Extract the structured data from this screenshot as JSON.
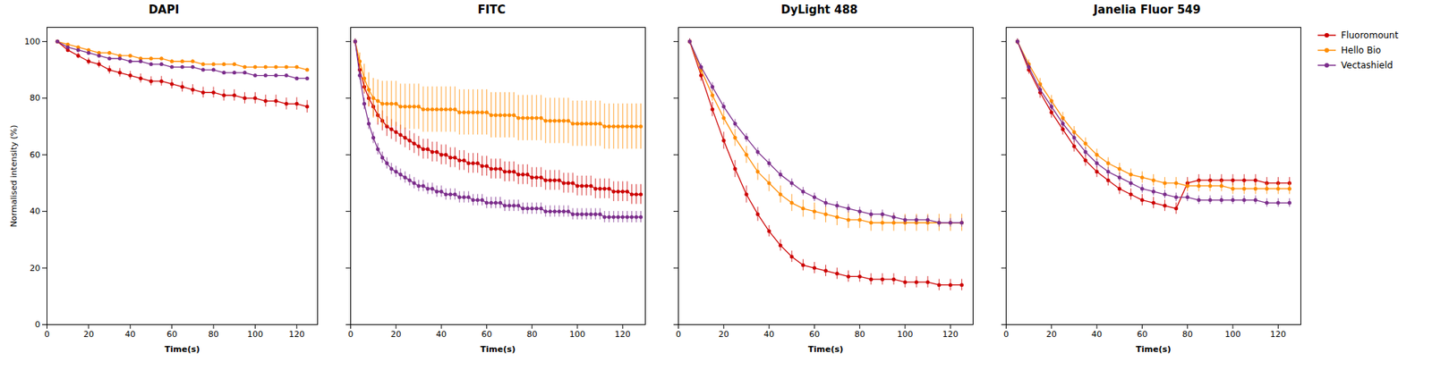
{
  "chart_data": [
    {
      "type": "line",
      "title": "DAPI",
      "xlabel": "Time(s)",
      "ylabel": "Normalised intensity (%)",
      "xlim": [
        0,
        130
      ],
      "ylim": [
        0,
        105
      ],
      "xticks": [
        0,
        20,
        40,
        60,
        80,
        100,
        120
      ],
      "yticks": [
        0,
        20,
        40,
        60,
        80,
        100
      ],
      "grid": false,
      "marker": "circle",
      "line_style": "solid",
      "x": [
        5,
        10,
        15,
        20,
        25,
        30,
        35,
        40,
        45,
        50,
        55,
        60,
        65,
        70,
        75,
        80,
        85,
        90,
        95,
        100,
        105,
        110,
        115,
        120,
        125
      ],
      "series": [
        {
          "name": "Fluoromount",
          "color": "#CC0000",
          "values": [
            100,
            97,
            95,
            93,
            92,
            90,
            89,
            88,
            87,
            86,
            86,
            85,
            84,
            83,
            82,
            82,
            81,
            81,
            80,
            80,
            79,
            79,
            78,
            78,
            77
          ],
          "yerr": [
            0.5,
            0.8,
            1.0,
            1.2,
            1.3,
            1.4,
            1.5,
            1.5,
            1.6,
            1.6,
            1.7,
            1.7,
            1.8,
            1.8,
            1.9,
            1.9,
            2.0,
            2.0,
            2.0,
            2.0,
            2.1,
            2.1,
            2.1,
            2.2,
            2.2
          ]
        },
        {
          "name": "Hello Bio",
          "color": "#FF8C00",
          "values": [
            100,
            99,
            98,
            97,
            96,
            96,
            95,
            95,
            94,
            94,
            94,
            93,
            93,
            93,
            92,
            92,
            92,
            92,
            91,
            91,
            91,
            91,
            91,
            91,
            90
          ],
          "yerr": [
            0.3,
            0.3,
            0.4,
            0.4,
            0.4,
            0.5,
            0.5,
            0.5,
            0.5,
            0.5,
            0.5,
            0.5,
            0.5,
            0.5,
            0.5,
            0.5,
            0.5,
            0.5,
            0.5,
            0.5,
            0.5,
            0.5,
            0.5,
            0.5,
            0.5
          ]
        },
        {
          "name": "Vectashield",
          "color": "#7B2D8B",
          "values": [
            100,
            98,
            97,
            96,
            95,
            94,
            94,
            93,
            93,
            92,
            92,
            91,
            91,
            91,
            90,
            90,
            89,
            89,
            89,
            88,
            88,
            88,
            88,
            87,
            87
          ],
          "yerr": [
            0.3,
            0.4,
            0.4,
            0.5,
            0.5,
            0.5,
            0.5,
            0.5,
            0.5,
            0.5,
            0.5,
            0.5,
            0.5,
            0.5,
            0.5,
            0.5,
            0.5,
            0.5,
            0.5,
            0.5,
            0.5,
            0.5,
            0.5,
            0.5,
            0.5
          ]
        }
      ]
    },
    {
      "type": "line",
      "title": "FITC",
      "xlabel": "Time(s)",
      "tick_labels": "x",
      "xlim": [
        0,
        130
      ],
      "ylim": [
        0,
        105
      ],
      "xticks": [
        0,
        20,
        40,
        60,
        80,
        100,
        120
      ],
      "yticks": [
        0,
        20,
        40,
        60,
        80,
        100
      ],
      "grid": false,
      "marker": "circle",
      "line_style": "solid",
      "x": [
        2,
        4,
        6,
        8,
        10,
        12,
        14,
        16,
        18,
        20,
        22,
        24,
        26,
        28,
        30,
        32,
        34,
        36,
        38,
        40,
        42,
        44,
        46,
        48,
        50,
        52,
        54,
        56,
        58,
        60,
        62,
        64,
        66,
        68,
        70,
        72,
        74,
        76,
        78,
        80,
        82,
        84,
        86,
        88,
        90,
        92,
        94,
        96,
        98,
        100,
        102,
        104,
        106,
        108,
        110,
        112,
        114,
        116,
        118,
        120,
        122,
        124,
        126,
        128
      ],
      "series": [
        {
          "name": "Fluoromount",
          "color": "#CC0000",
          "values": [
            100,
            90,
            84,
            80,
            77,
            74,
            72,
            70,
            69,
            68,
            67,
            66,
            65,
            64,
            63,
            62,
            62,
            61,
            61,
            60,
            60,
            59,
            59,
            58,
            58,
            57,
            57,
            57,
            56,
            56,
            55,
            55,
            55,
            54,
            54,
            54,
            53,
            53,
            53,
            52,
            52,
            52,
            51,
            51,
            51,
            51,
            50,
            50,
            50,
            49,
            49,
            49,
            49,
            48,
            48,
            48,
            48,
            47,
            47,
            47,
            47,
            46,
            46,
            46
          ],
          "yerr": [
            1,
            2,
            2.5,
            3,
            3.5,
            3.5,
            3.5,
            3.5,
            3.5,
            3.5,
            3.5,
            3.5,
            3.5,
            3.5,
            3.5,
            3.5,
            3.5,
            3.5,
            3.5,
            3.5,
            3.5,
            3.5,
            3.5,
            3.5,
            3.5,
            3.5,
            3.5,
            3.5,
            3.5,
            3.5,
            3.5,
            3.5,
            3.5,
            3.5,
            3.5,
            3.5,
            3.5,
            3.5,
            3.5,
            3.5,
            3.5,
            3.5,
            3.5,
            3.5,
            3.5,
            3.5,
            3.5,
            3.5,
            3.5,
            3.5,
            3.5,
            3.5,
            3.5,
            3.5,
            3.5,
            3.5,
            3.5,
            3.5,
            3.5,
            3.5,
            3.5,
            3.5,
            3.5,
            3.5
          ]
        },
        {
          "name": "Hello Bio",
          "color": "#FF8C00",
          "values": [
            100,
            93,
            87,
            83,
            80,
            79,
            78,
            78,
            78,
            78,
            77,
            77,
            77,
            77,
            77,
            76,
            76,
            76,
            76,
            76,
            76,
            76,
            76,
            75,
            75,
            75,
            75,
            75,
            75,
            75,
            74,
            74,
            74,
            74,
            74,
            74,
            73,
            73,
            73,
            73,
            73,
            73,
            72,
            72,
            72,
            72,
            72,
            72,
            71,
            71,
            71,
            71,
            71,
            71,
            71,
            70,
            70,
            70,
            70,
            70,
            70,
            70,
            70,
            70
          ],
          "yerr": [
            1,
            3,
            5,
            6,
            7,
            7.5,
            8,
            8,
            8,
            8,
            8,
            8,
            8,
            8,
            8,
            8,
            8,
            8,
            8,
            8,
            8,
            8,
            8,
            8,
            8,
            8,
            8,
            8,
            8,
            8,
            8,
            8,
            8,
            8,
            8,
            8,
            8,
            8,
            8,
            8,
            8,
            8,
            8,
            8,
            8,
            8,
            8,
            8,
            8,
            8,
            8,
            8,
            8,
            8,
            8,
            8,
            8,
            8,
            8,
            8,
            8,
            8,
            8,
            8
          ]
        },
        {
          "name": "Vectashield",
          "color": "#7B2D8B",
          "values": [
            100,
            88,
            78,
            71,
            66,
            62,
            59,
            57,
            55,
            54,
            53,
            52,
            51,
            50,
            49,
            49,
            48,
            48,
            47,
            47,
            46,
            46,
            46,
            45,
            45,
            45,
            44,
            44,
            44,
            43,
            43,
            43,
            43,
            42,
            42,
            42,
            42,
            41,
            41,
            41,
            41,
            41,
            40,
            40,
            40,
            40,
            40,
            40,
            39,
            39,
            39,
            39,
            39,
            39,
            39,
            38,
            38,
            38,
            38,
            38,
            38,
            38,
            38,
            38
          ],
          "yerr": [
            1,
            1.5,
            2,
            2,
            2,
            2,
            2,
            2,
            2,
            2,
            2,
            2,
            2,
            2,
            2,
            2,
            2,
            2,
            2,
            2,
            2,
            2,
            2,
            2,
            2,
            2,
            2,
            2,
            2,
            2,
            2,
            2,
            2,
            2,
            2,
            2,
            2,
            2,
            2,
            2,
            2,
            2,
            2,
            2,
            2,
            2,
            2,
            2,
            2,
            2,
            2,
            2,
            2,
            2,
            2,
            2,
            2,
            2,
            2,
            2,
            2,
            2,
            2,
            2
          ]
        }
      ]
    },
    {
      "type": "line",
      "title": "DyLight 488",
      "xlabel": "Time(s)",
      "tick_labels": "x",
      "xlim": [
        0,
        130
      ],
      "ylim": [
        0,
        105
      ],
      "xticks": [
        0,
        20,
        40,
        60,
        80,
        100,
        120
      ],
      "yticks": [
        0,
        20,
        40,
        60,
        80,
        100
      ],
      "grid": false,
      "marker": "circle",
      "line_style": "solid",
      "x": [
        5,
        10,
        15,
        20,
        25,
        30,
        35,
        40,
        45,
        50,
        55,
        60,
        65,
        70,
        75,
        80,
        85,
        90,
        95,
        100,
        105,
        110,
        115,
        120,
        125
      ],
      "series": [
        {
          "name": "Fluoromount",
          "color": "#CC0000",
          "values": [
            100,
            88,
            76,
            65,
            55,
            46,
            39,
            33,
            28,
            24,
            21,
            20,
            19,
            18,
            17,
            17,
            16,
            16,
            16,
            15,
            15,
            15,
            14,
            14,
            14
          ],
          "yerr": [
            1,
            2,
            2.5,
            3,
            3,
            3,
            2.5,
            2,
            2,
            2,
            2,
            2,
            2,
            2,
            2,
            2,
            2,
            2,
            2,
            2,
            2,
            2,
            2,
            2,
            2
          ]
        },
        {
          "name": "Hello Bio",
          "color": "#FF8C00",
          "values": [
            100,
            90,
            81,
            73,
            66,
            60,
            54,
            50,
            46,
            43,
            41,
            40,
            39,
            38,
            37,
            37,
            36,
            36,
            36,
            36,
            36,
            36,
            36,
            36,
            36
          ],
          "yerr": [
            1,
            1.5,
            2,
            2.5,
            3,
            3,
            3,
            3,
            3,
            3,
            3,
            3,
            3,
            3,
            3,
            3,
            3,
            3,
            3,
            3,
            3,
            3,
            3,
            3,
            3
          ]
        },
        {
          "name": "Vectashield",
          "color": "#7B2D8B",
          "values": [
            100,
            91,
            84,
            77,
            71,
            66,
            61,
            57,
            53,
            50,
            47,
            45,
            43,
            42,
            41,
            40,
            39,
            39,
            38,
            37,
            37,
            37,
            36,
            36,
            36
          ],
          "yerr": [
            1,
            1.2,
            1.5,
            1.5,
            1.5,
            1.5,
            1.5,
            1.5,
            1.5,
            1.5,
            1.5,
            1.5,
            1.5,
            1.5,
            1.5,
            1.5,
            1.5,
            1.5,
            1.5,
            1.5,
            1.5,
            1.5,
            1.5,
            1.5,
            1.5
          ]
        }
      ]
    },
    {
      "type": "line",
      "title": "Janelia Fluor 549",
      "xlabel": "Time(s)",
      "tick_labels": "x",
      "legend": "right",
      "xlim": [
        0,
        130
      ],
      "ylim": [
        0,
        105
      ],
      "xticks": [
        0,
        20,
        40,
        60,
        80,
        100,
        120
      ],
      "yticks": [
        0,
        20,
        40,
        60,
        80,
        100
      ],
      "grid": false,
      "marker": "circle",
      "line_style": "solid",
      "x": [
        5,
        10,
        15,
        20,
        25,
        30,
        35,
        40,
        45,
        50,
        55,
        60,
        65,
        70,
        75,
        80,
        85,
        90,
        95,
        100,
        105,
        110,
        115,
        120,
        125
      ],
      "series": [
        {
          "name": "Fluoromount",
          "color": "#CC0000",
          "values": [
            100,
            90,
            82,
            75,
            69,
            63,
            58,
            54,
            51,
            48,
            46,
            44,
            43,
            42,
            41,
            50,
            51,
            51,
            51,
            51,
            51,
            51,
            50,
            50,
            50
          ],
          "yerr": [
            1,
            1.5,
            2,
            2,
            2,
            2,
            2,
            2,
            2,
            2,
            2,
            2,
            2,
            2,
            2,
            2,
            2,
            2,
            2,
            2,
            2,
            2,
            2,
            2,
            2
          ]
        },
        {
          "name": "Hello Bio",
          "color": "#FF8C00",
          "values": [
            100,
            92,
            85,
            79,
            73,
            68,
            64,
            60,
            57,
            55,
            53,
            52,
            51,
            50,
            50,
            49,
            49,
            49,
            49,
            48,
            48,
            48,
            48,
            48,
            48
          ],
          "yerr": [
            1,
            1.5,
            2,
            2,
            2,
            2,
            2,
            2,
            2,
            2,
            2,
            2,
            2,
            2,
            2,
            2,
            2,
            2,
            2,
            2,
            2,
            2,
            2,
            2,
            2
          ]
        },
        {
          "name": "Vectashield",
          "color": "#7B2D8B",
          "values": [
            100,
            91,
            83,
            77,
            71,
            66,
            61,
            57,
            54,
            52,
            50,
            48,
            47,
            46,
            45,
            45,
            44,
            44,
            44,
            44,
            44,
            44,
            43,
            43,
            43
          ],
          "yerr": [
            1,
            1.2,
            1.5,
            1.5,
            1.5,
            1.5,
            1.5,
            1.5,
            1.5,
            1.5,
            1.5,
            1.5,
            1.5,
            1.5,
            1.5,
            1.5,
            1.5,
            1.5,
            1.5,
            1.5,
            1.5,
            1.5,
            1.5,
            1.5,
            1.5
          ]
        }
      ]
    }
  ]
}
